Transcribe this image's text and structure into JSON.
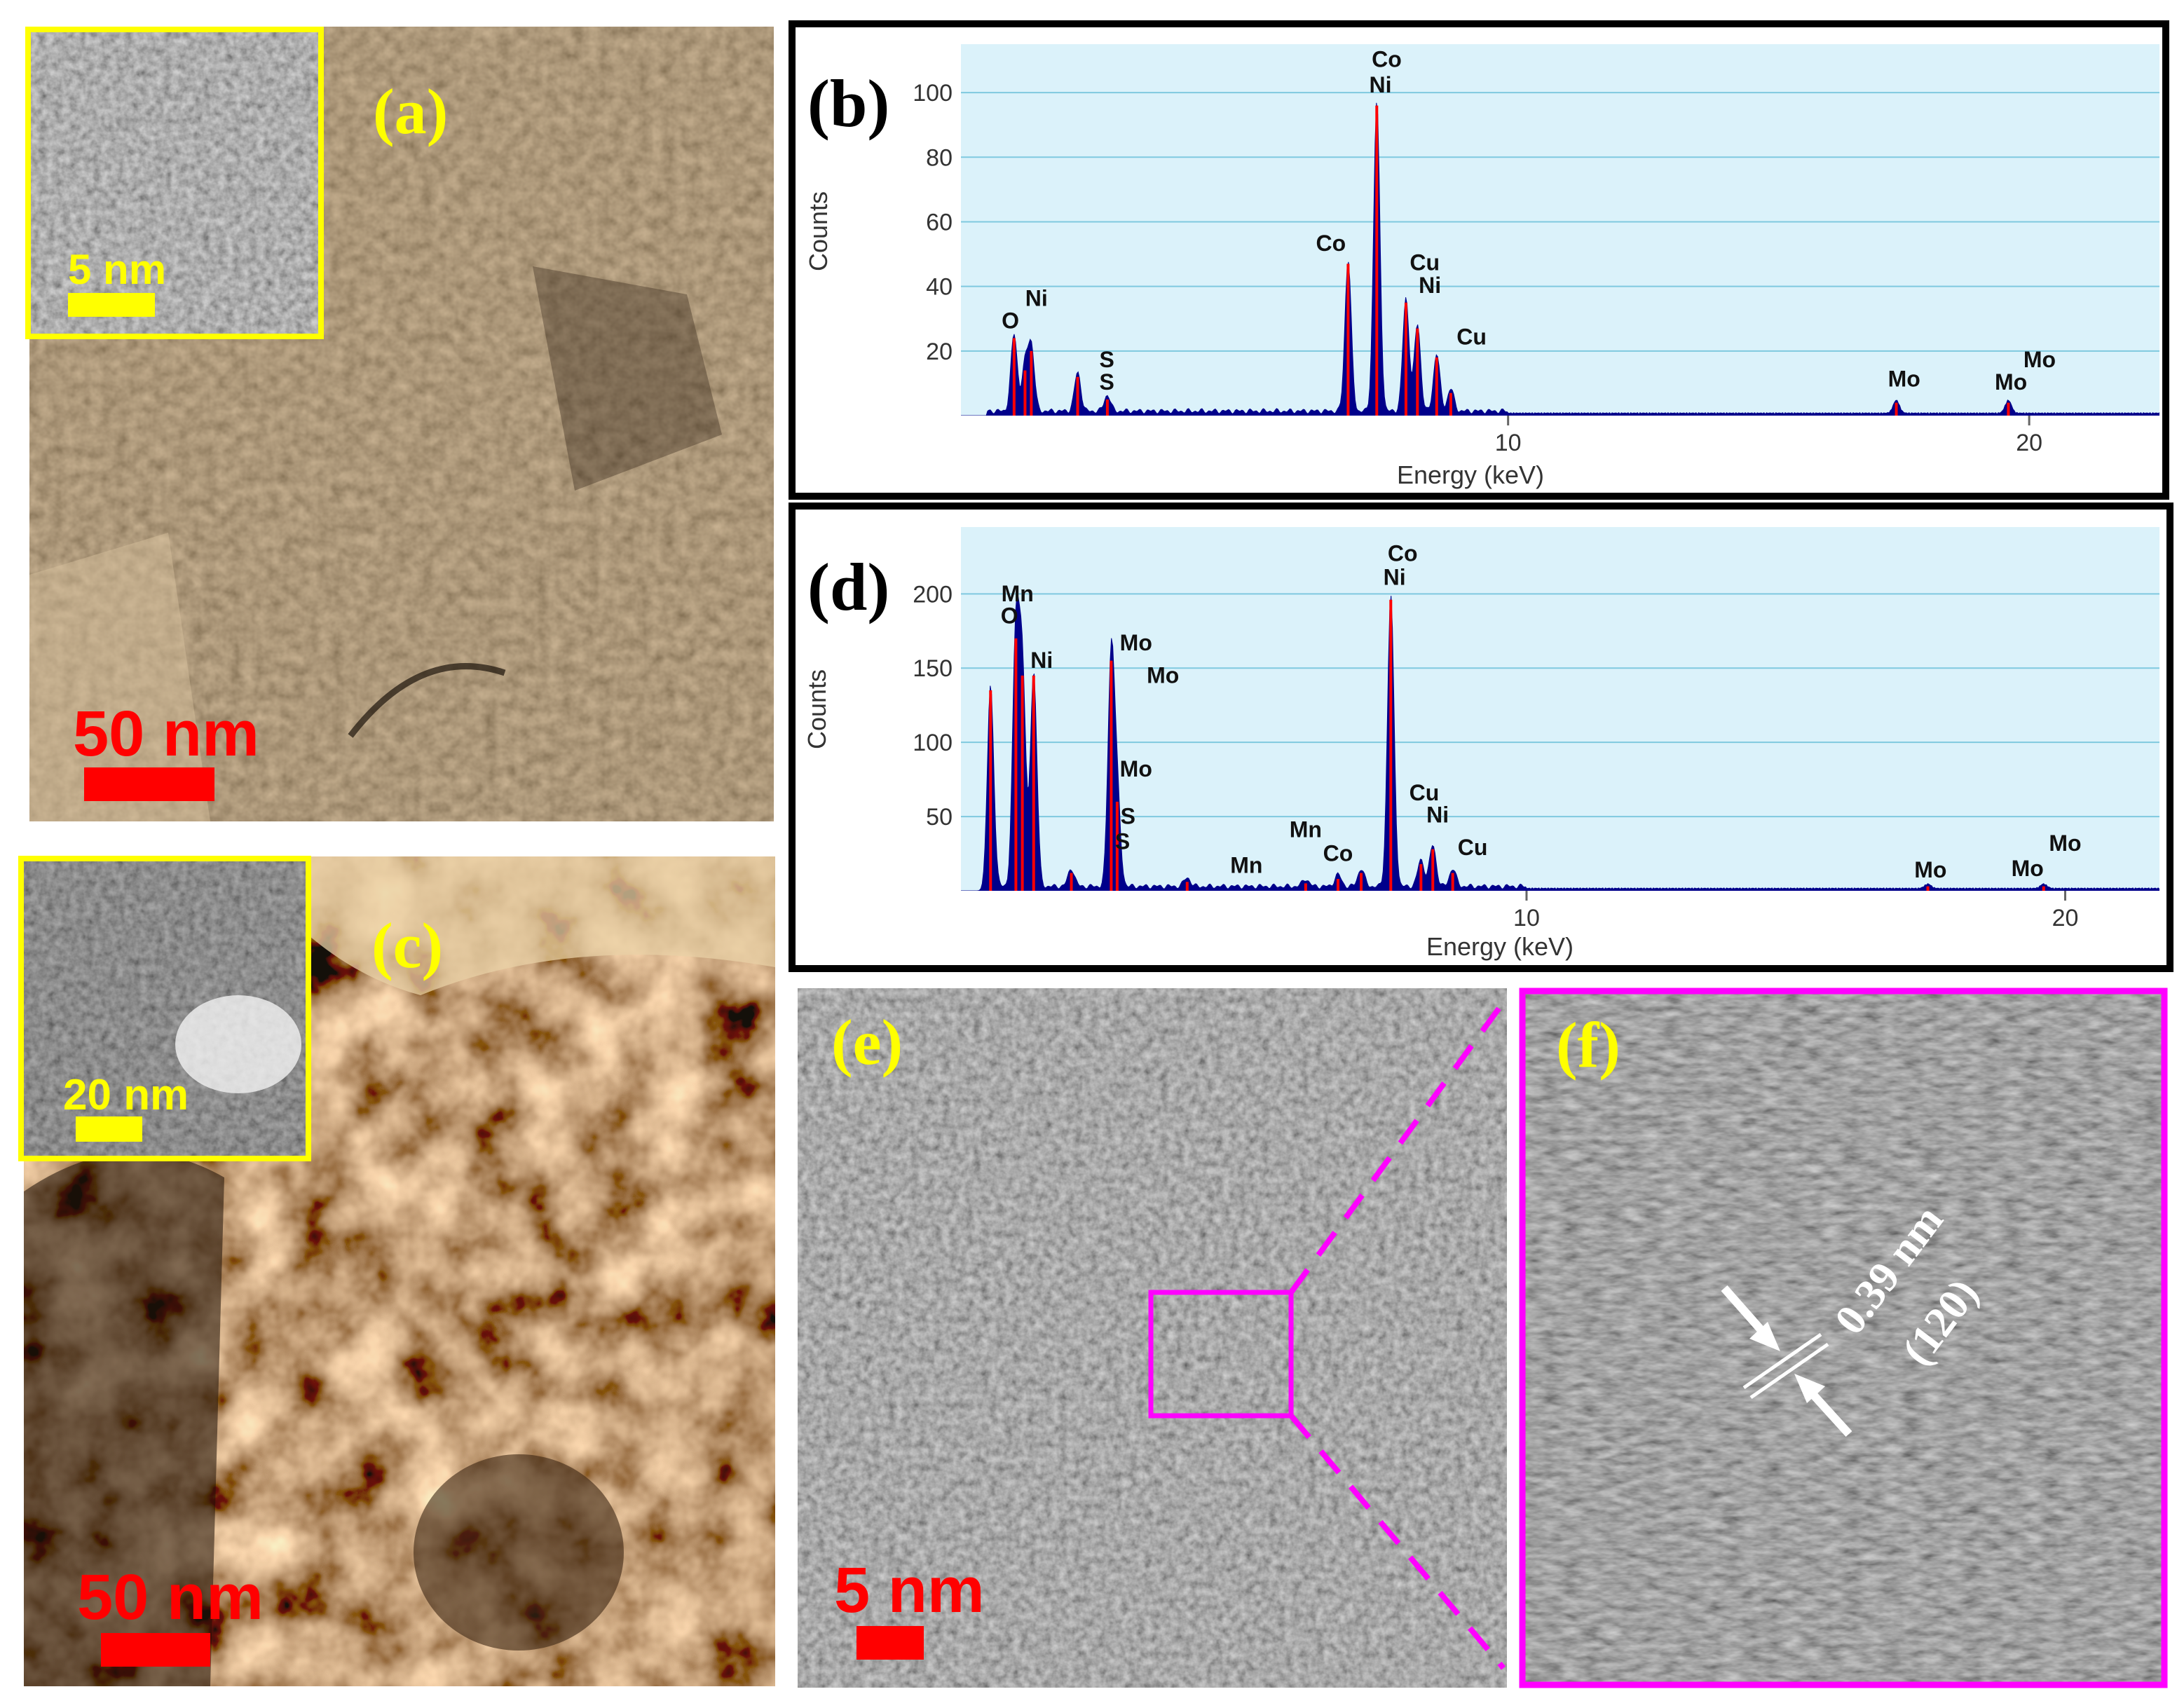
{
  "panels": {
    "a": {
      "label": "(a)",
      "scale_bar": "50 nm",
      "inset_scale_bar": "5 nm"
    },
    "b": {
      "label": "(b)"
    },
    "c": {
      "label": "(c)",
      "scale_bar": "50 nm",
      "inset_scale_bar": "20 nm"
    },
    "d": {
      "label": "(d)"
    },
    "e": {
      "label": "(e)",
      "scale_bar": "5 nm"
    },
    "f": {
      "label": "(f)",
      "d_spacing": "0.39 nm",
      "plane": "(120)"
    }
  },
  "colors": {
    "label_yellow": "#ffff00",
    "scale_red": "#ff0000",
    "inset_frame": "#ffff00",
    "zoom_magenta": "#ff00ff",
    "plot_bg": "#dbf2fa",
    "gridline": "#7fc9df",
    "spectrum_fill": "#00008b",
    "peak_marker": "#ff0000",
    "sepia_a": "#8a7152",
    "sepia_c": "#b68a4e",
    "hrtem_gray": "#6f6f6f"
  },
  "chart_data": [
    {
      "type": "area",
      "panel": "b",
      "xlabel": "Energy (keV)",
      "ylabel": "Counts",
      "xlim": [
        -0.5,
        22.5
      ],
      "ylim": [
        0,
        115
      ],
      "xticks": [
        10,
        20
      ],
      "yticks": [
        20,
        40,
        60,
        80,
        100
      ],
      "grid": true,
      "peaks": [
        {
          "x": 0.52,
          "y": 24
        },
        {
          "x": 0.73,
          "y": 14
        },
        {
          "x": 0.85,
          "y": 20
        },
        {
          "x": 1.74,
          "y": 12
        },
        {
          "x": 2.31,
          "y": 5
        },
        {
          "x": 6.93,
          "y": 47
        },
        {
          "x": 7.48,
          "y": 96
        },
        {
          "x": 8.04,
          "y": 35
        },
        {
          "x": 8.26,
          "y": 27
        },
        {
          "x": 8.63,
          "y": 18
        },
        {
          "x": 8.9,
          "y": 7
        },
        {
          "x": 17.45,
          "y": 4
        },
        {
          "x": 19.6,
          "y": 4
        }
      ],
      "annotations": [
        {
          "text": "Co",
          "x": 7.67,
          "y": 108
        },
        {
          "text": "Ni",
          "x": 7.55,
          "y": 100
        },
        {
          "text": "Co",
          "x": 6.6,
          "y": 51
        },
        {
          "text": "Cu",
          "x": 8.4,
          "y": 45
        },
        {
          "text": "Ni",
          "x": 8.5,
          "y": 38
        },
        {
          "text": "Cu",
          "x": 9.3,
          "y": 22
        },
        {
          "text": "Ni",
          "x": 0.95,
          "y": 34
        },
        {
          "text": "O",
          "x": 0.45,
          "y": 27
        },
        {
          "text": "S",
          "x": 2.3,
          "y": 15
        },
        {
          "text": "S",
          "x": 2.3,
          "y": 8
        },
        {
          "text": "Mo",
          "x": 17.6,
          "y": 9
        },
        {
          "text": "Mo",
          "x": 20.2,
          "y": 15
        },
        {
          "text": "Mo",
          "x": 19.65,
          "y": 8
        }
      ]
    },
    {
      "type": "area",
      "panel": "d",
      "xlabel": "Energy (keV)",
      "ylabel": "Counts",
      "xlim": [
        -0.5,
        21.75
      ],
      "ylim": [
        0,
        245
      ],
      "xticks": [
        10,
        20
      ],
      "yticks": [
        50,
        100,
        150,
        200
      ],
      "grid": true,
      "peaks": [
        {
          "x": 0.05,
          "y": 135
        },
        {
          "x": 0.52,
          "y": 170
        },
        {
          "x": 0.64,
          "y": 145
        },
        {
          "x": 0.85,
          "y": 145
        },
        {
          "x": 1.55,
          "y": 12
        },
        {
          "x": 2.29,
          "y": 155
        },
        {
          "x": 2.4,
          "y": 60
        },
        {
          "x": 3.7,
          "y": 6
        },
        {
          "x": 5.9,
          "y": 5
        },
        {
          "x": 6.5,
          "y": 8
        },
        {
          "x": 6.93,
          "y": 12
        },
        {
          "x": 7.48,
          "y": 196
        },
        {
          "x": 8.04,
          "y": 18
        },
        {
          "x": 8.26,
          "y": 28
        },
        {
          "x": 8.63,
          "y": 12
        },
        {
          "x": 17.45,
          "y": 3
        },
        {
          "x": 19.6,
          "y": 3
        }
      ],
      "annotations": [
        {
          "text": "Co",
          "x": 7.7,
          "y": 222
        },
        {
          "text": "Ni",
          "x": 7.55,
          "y": 206
        },
        {
          "text": "Mn",
          "x": 0.55,
          "y": 195
        },
        {
          "text": "O",
          "x": 0.4,
          "y": 180
        },
        {
          "text": "Ni",
          "x": 1.0,
          "y": 150
        },
        {
          "text": "Mo",
          "x": 2.75,
          "y": 162
        },
        {
          "text": "Mo",
          "x": 3.25,
          "y": 140
        },
        {
          "text": "Mo",
          "x": 2.75,
          "y": 77
        },
        {
          "text": "S",
          "x": 2.6,
          "y": 45
        },
        {
          "text": "S",
          "x": 2.5,
          "y": 28
        },
        {
          "text": "Mn",
          "x": 5.9,
          "y": 36
        },
        {
          "text": "Mn",
          "x": 4.8,
          "y": 12
        },
        {
          "text": "Co",
          "x": 6.5,
          "y": 20
        },
        {
          "text": "Cu",
          "x": 8.1,
          "y": 61
        },
        {
          "text": "Ni",
          "x": 8.35,
          "y": 46
        },
        {
          "text": "Cu",
          "x": 9.0,
          "y": 24
        },
        {
          "text": "Mo",
          "x": 17.5,
          "y": 9
        },
        {
          "text": "Mo",
          "x": 20.0,
          "y": 27
        },
        {
          "text": "Mo",
          "x": 19.3,
          "y": 10
        }
      ]
    }
  ]
}
